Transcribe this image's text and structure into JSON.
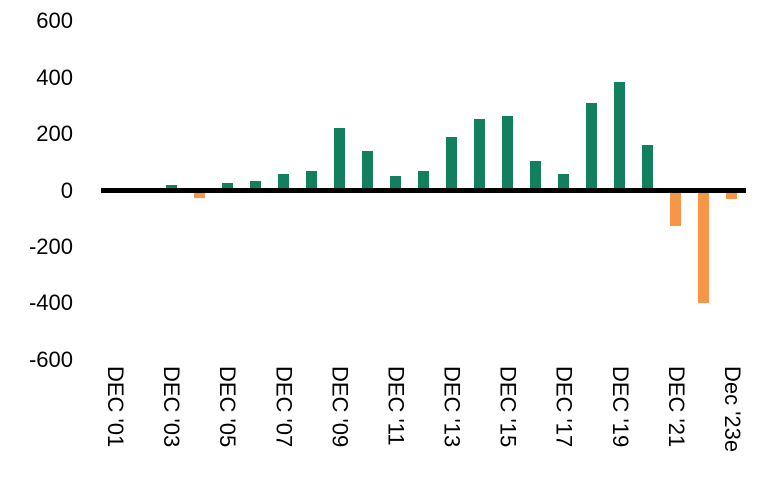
{
  "chart_data": {
    "type": "bar",
    "title": "",
    "xlabel": "",
    "ylabel": "",
    "categories": [
      "2001",
      "2002",
      "2003",
      "2004",
      "2005",
      "2006",
      "2007",
      "2008",
      "2009",
      "2010",
      "2011",
      "2012",
      "2013",
      "2014",
      "2015",
      "2016",
      "2017",
      "2018",
      "2019",
      "2020",
      "2021",
      "2022",
      "2023e"
    ],
    "values": [
      null,
      null,
      20,
      -25,
      25,
      35,
      60,
      70,
      220,
      140,
      50,
      70,
      190,
      255,
      265,
      105,
      60,
      310,
      385,
      160,
      -125,
      -400,
      -30
    ],
    "x_tick_labels": [
      "DEC '01",
      "DEC '03",
      "DEC '05",
      "DEC '07",
      "DEC '09",
      "DEC '11",
      "DEC '13",
      "DEC '15",
      "DEC '17",
      "DEC '19",
      "DEC '21",
      "Dec '23e"
    ],
    "y_ticks": [
      600,
      400,
      200,
      0,
      -200,
      -400,
      -600
    ],
    "ylim": [
      -600,
      600
    ],
    "grid": false,
    "legend": "none",
    "bar_color_positive": "#12805E",
    "bar_color_negative": "#F79646",
    "zero_line_color": "#000000",
    "text_color": "#000000"
  }
}
